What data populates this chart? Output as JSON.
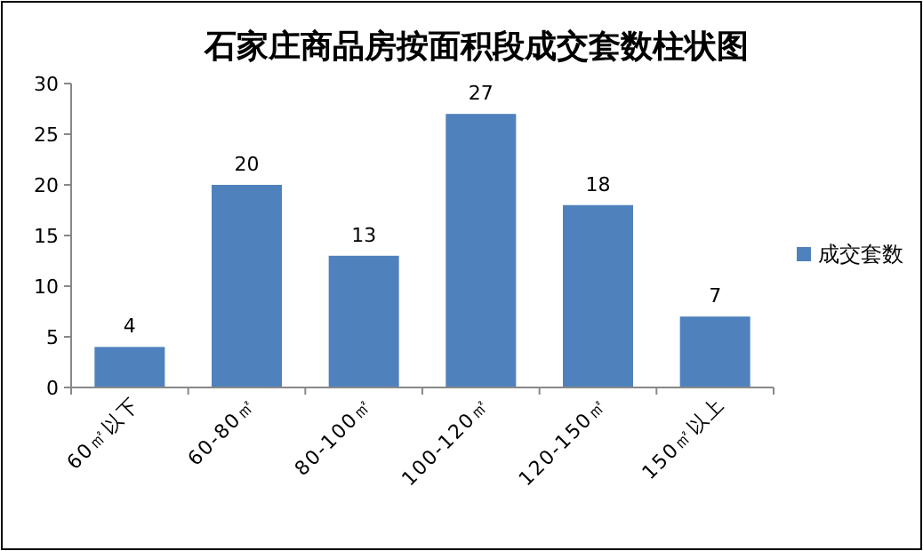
{
  "chart_data": {
    "type": "bar",
    "title": "石家庄商品房按面积段成交套数柱状图",
    "categories": [
      "60㎡以下",
      "60-80㎡",
      "80-100㎡",
      "100-120㎡",
      "120-150㎡",
      "150㎡以上"
    ],
    "series": [
      {
        "name": "成交套数",
        "color": "#4f81bd",
        "values": [
          4,
          20,
          13,
          27,
          18,
          7
        ]
      }
    ],
    "ylim": [
      0,
      30
    ],
    "yticks": [
      0,
      5,
      10,
      15,
      20,
      25,
      30
    ],
    "data_labels": true,
    "legend": "right",
    "grid": false
  }
}
